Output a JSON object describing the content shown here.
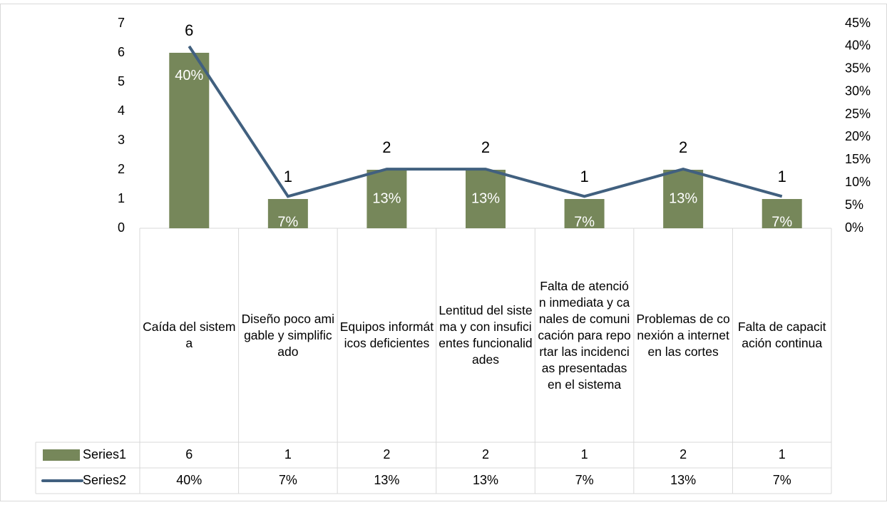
{
  "chart_data": {
    "type": "bar-line",
    "categories": [
      "Caída del sistema",
      "Diseño poco amigable y simplificado",
      "Equipos informáticos deficientes",
      "Lentitud del sistema y con insuficientes funcionalidades",
      "Falta de atención inmediata y canales de comunicación para reportar las incidencias presentadas en el sistema",
      "Problemas de conexión a internet en las cortes",
      "Falta de capacitación continua"
    ],
    "series": [
      {
        "name": "Series1",
        "type": "bar",
        "color": "#76875a",
        "values": [
          6,
          1,
          2,
          2,
          1,
          2,
          1
        ]
      },
      {
        "name": "Series2",
        "type": "line",
        "axis": "y2",
        "color": "#41607f",
        "values": [
          40,
          7,
          13,
          13,
          7,
          13,
          7
        ],
        "value_labels": [
          "40%",
          "7%",
          "13%",
          "13%",
          "7%",
          "13%",
          "7%"
        ]
      }
    ],
    "ylim": [
      0,
      7
    ],
    "yticks": [
      0,
      1,
      2,
      3,
      4,
      5,
      6,
      7
    ],
    "y2lim": [
      0,
      45
    ],
    "y2ticks": [
      {
        "value": 0,
        "label": "0%"
      },
      {
        "value": 5,
        "label": "5%"
      },
      {
        "value": 10,
        "label": "10%"
      },
      {
        "value": 15,
        "label": "15%"
      },
      {
        "value": 20,
        "label": "20%"
      },
      {
        "value": 25,
        "label": "25%"
      },
      {
        "value": 30,
        "label": "30%"
      },
      {
        "value": 35,
        "label": "35%"
      },
      {
        "value": 40,
        "label": "40%"
      },
      {
        "value": 45,
        "label": "45%"
      }
    ],
    "grid": false,
    "legend": "data-table"
  }
}
